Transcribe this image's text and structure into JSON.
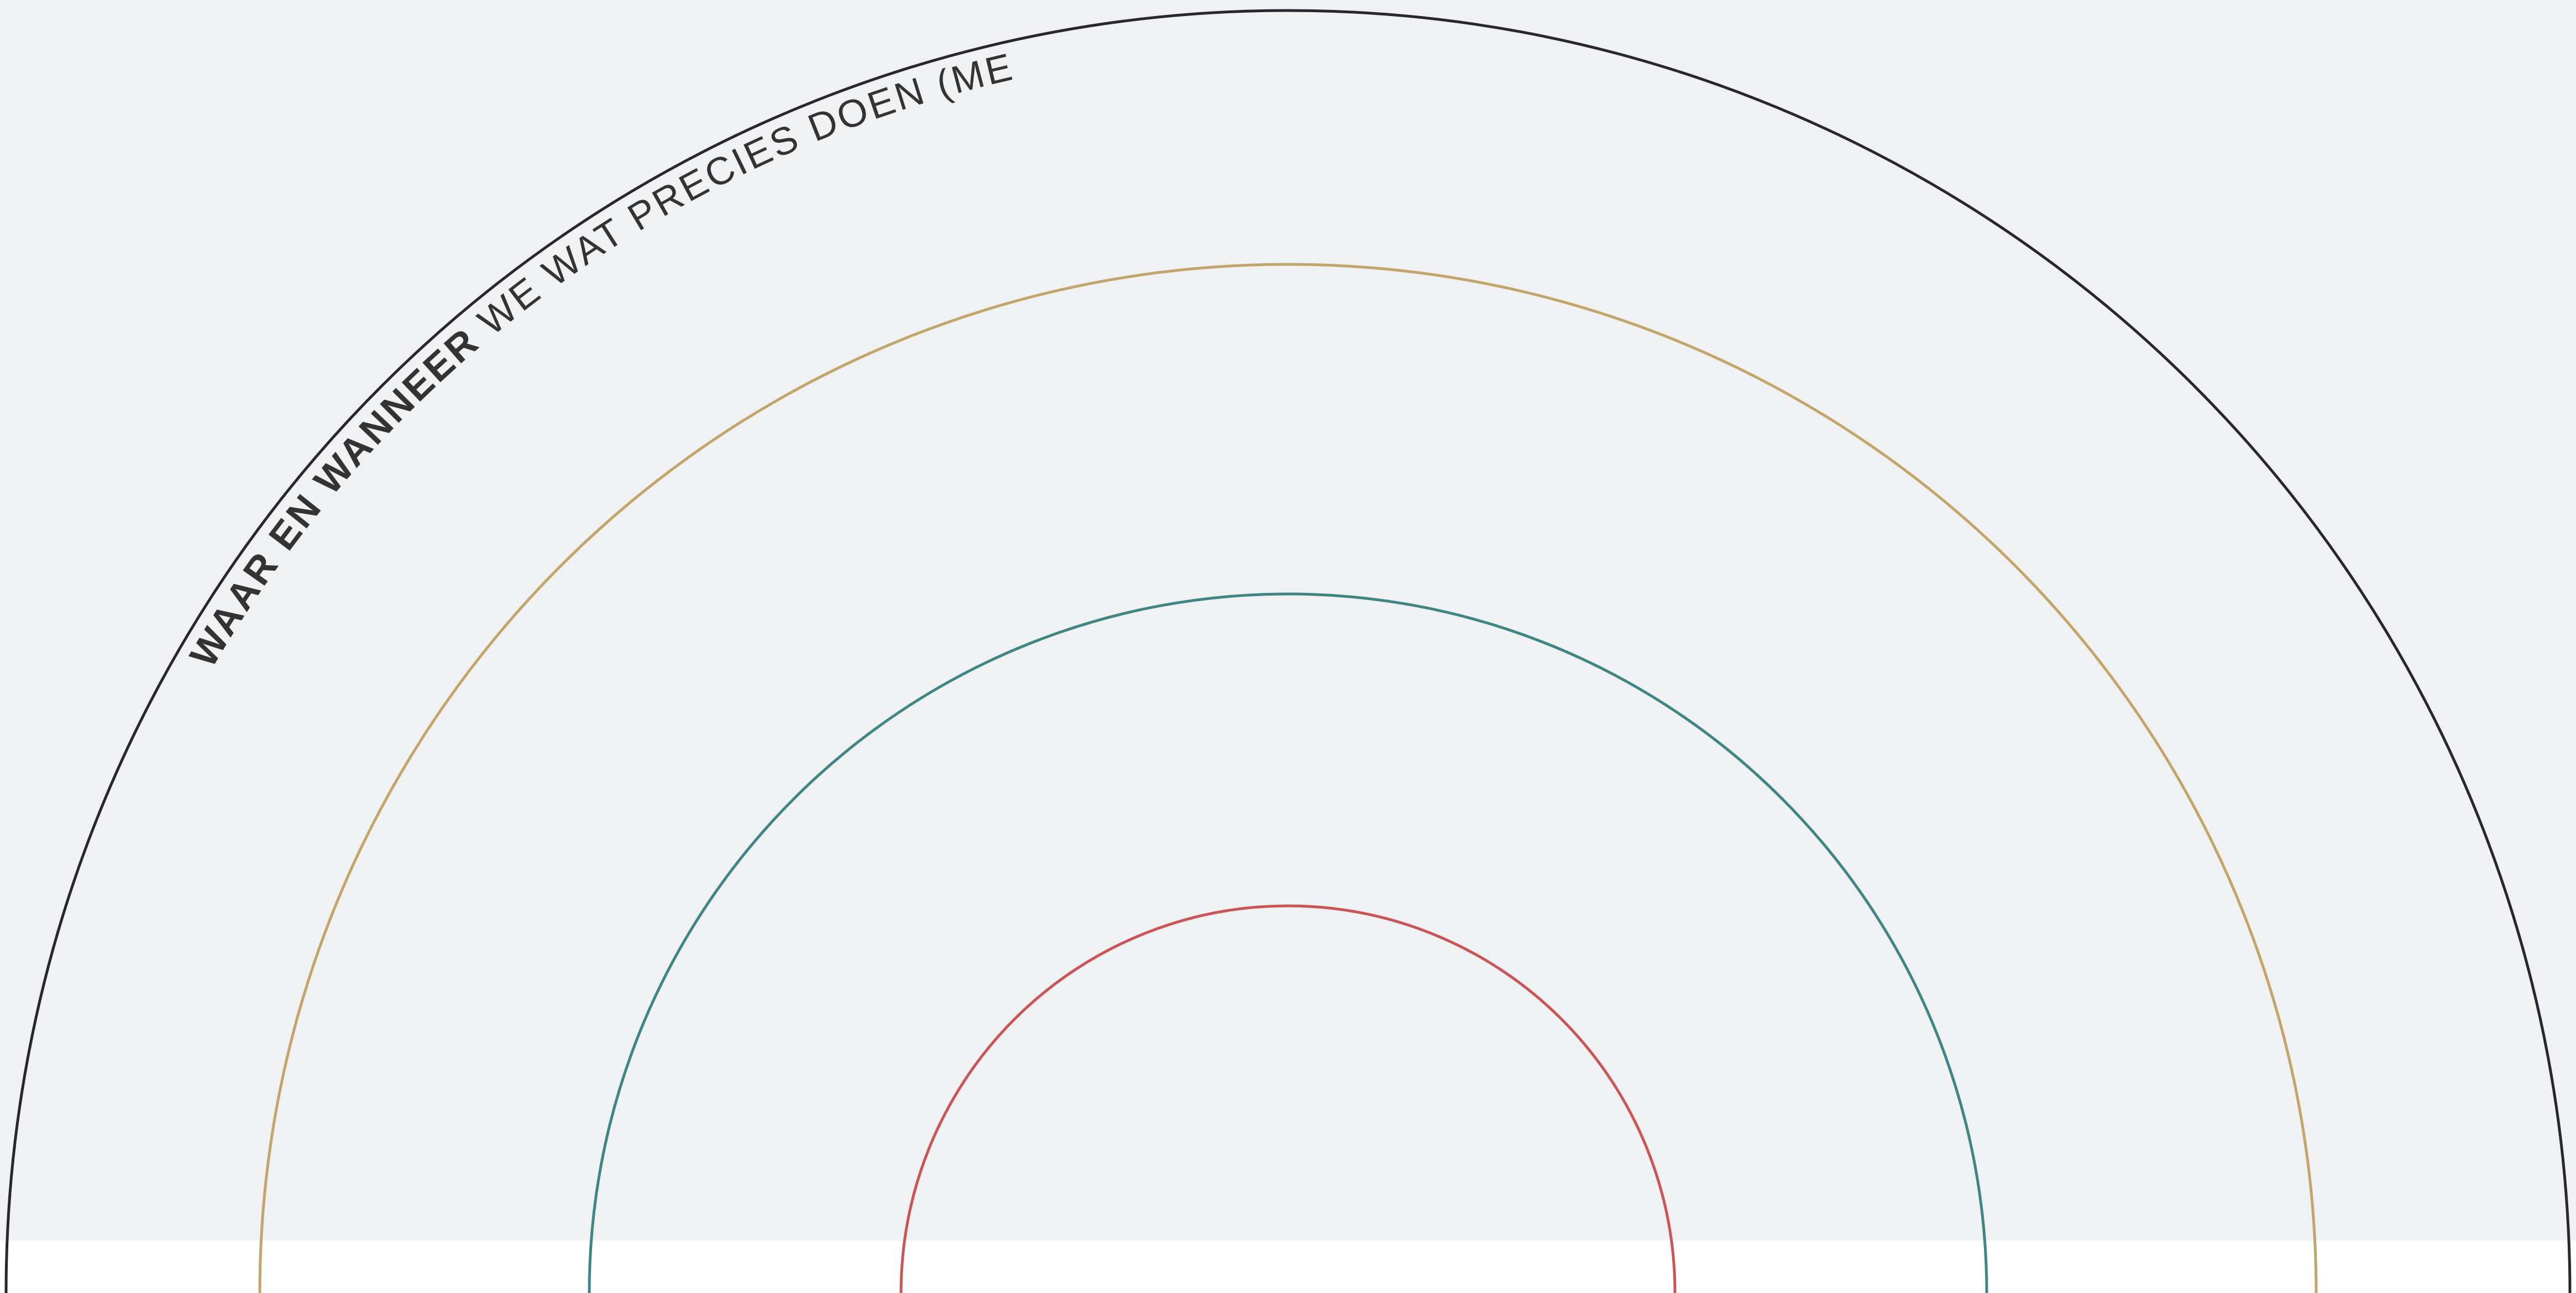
{
  "diagram": {
    "background_color": "#F0F1F3",
    "bottom_band_color": "#FFFFFF",
    "rings": [
      {
        "name": "outer",
        "color": "#2A2630"
      },
      {
        "name": "second",
        "color": "#C2A56A"
      },
      {
        "name": "third",
        "color": "#3F8583"
      },
      {
        "name": "inner",
        "color": "#C95557"
      }
    ],
    "arc_label": {
      "bold": "WAAR EN WANNEER",
      "light": " WE WAT PRECIES DOEN (ME",
      "color": "#333333"
    }
  }
}
